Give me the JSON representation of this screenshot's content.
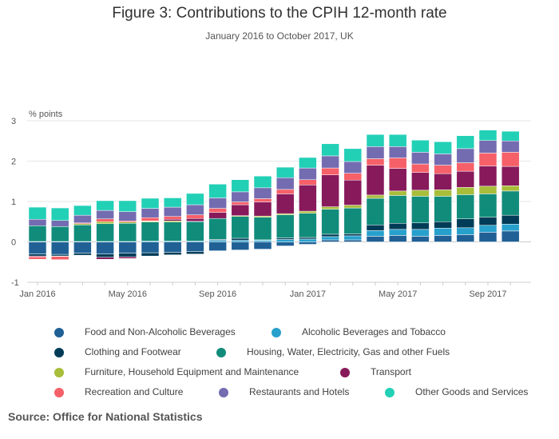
{
  "chart_data": {
    "type": "stacked bar",
    "title": "Figure 3: Contributions to the CPIH 12-month rate",
    "subtitle": "January 2016 to October 2017, UK",
    "ylabel": "% points",
    "ylim": [
      -1,
      3
    ],
    "yticks": [
      -1,
      0,
      1,
      2,
      3
    ],
    "x_tick_labels": [
      "Jan 2016",
      "May 2016",
      "Sep 2016",
      "Jan 2017",
      "May 2017",
      "Sep 2017"
    ],
    "x_tick_indices": [
      0,
      4,
      8,
      12,
      16,
      20
    ],
    "categories": [
      "Jan 2016",
      "Feb 2016",
      "Mar 2016",
      "Apr 2016",
      "May 2016",
      "Jun 2016",
      "Jul 2016",
      "Aug 2016",
      "Sep 2016",
      "Oct 2016",
      "Nov 2016",
      "Dec 2016",
      "Jan 2017",
      "Feb 2017",
      "Mar 2017",
      "Apr 2017",
      "May 2017",
      "Jun 2017",
      "Jul 2017",
      "Aug 2017",
      "Sep 2017",
      "Oct 2017"
    ],
    "series": [
      {
        "name": "Food and Non-Alcoholic Beverages",
        "color": "#206095",
        "values": [
          -0.3,
          -0.31,
          -0.28,
          -0.3,
          -0.28,
          -0.27,
          -0.26,
          -0.24,
          -0.22,
          -0.2,
          -0.18,
          -0.1,
          -0.06,
          0.05,
          0.05,
          0.14,
          0.16,
          0.14,
          0.16,
          0.18,
          0.24,
          0.27
        ]
      },
      {
        "name": "Alcoholic Beverages and Tobacco",
        "color": "#27a0cc",
        "values": [
          0.01,
          0.01,
          0.01,
          0.01,
          0.01,
          0.02,
          0.02,
          0.02,
          0.04,
          0.04,
          0.04,
          0.06,
          0.07,
          0.08,
          0.1,
          0.14,
          0.15,
          0.17,
          0.18,
          0.17,
          0.17,
          0.17
        ]
      },
      {
        "name": "Clothing and Footwear",
        "color": "#003c57",
        "values": [
          -0.05,
          -0.04,
          -0.05,
          -0.08,
          -0.09,
          -0.08,
          -0.06,
          -0.06,
          0.02,
          0.05,
          0.01,
          0.04,
          0.04,
          0.06,
          0.05,
          0.14,
          0.15,
          0.16,
          0.16,
          0.22,
          0.2,
          0.22
        ]
      },
      {
        "name": "Housing, Water, Electricity, Gas and other Fuels",
        "color": "#118c7b",
        "values": [
          0.39,
          0.37,
          0.41,
          0.44,
          0.45,
          0.47,
          0.47,
          0.48,
          0.52,
          0.54,
          0.56,
          0.57,
          0.6,
          0.62,
          0.64,
          0.66,
          0.69,
          0.66,
          0.63,
          0.6,
          0.58,
          0.6
        ]
      },
      {
        "name": "Furniture, Household Equipment and Maintenance",
        "color": "#a8bd3a",
        "values": [
          0.0,
          0.0,
          0.03,
          0.05,
          0.03,
          0.02,
          0.03,
          0.01,
          0.0,
          0.02,
          0.03,
          0.03,
          0.05,
          0.06,
          0.07,
          0.08,
          0.11,
          0.15,
          0.16,
          0.18,
          0.19,
          0.13
        ]
      },
      {
        "name": "Transport",
        "color": "#871a5b",
        "values": [
          -0.02,
          -0.01,
          -0.01,
          -0.05,
          -0.04,
          0.01,
          0.04,
          0.07,
          0.15,
          0.27,
          0.35,
          0.49,
          0.65,
          0.79,
          0.62,
          0.74,
          0.56,
          0.44,
          0.4,
          0.4,
          0.5,
          0.48
        ]
      },
      {
        "name": "Recreation and Culture",
        "color": "#f66068",
        "values": [
          -0.06,
          -0.08,
          0.02,
          0.07,
          0.03,
          0.08,
          0.07,
          0.09,
          0.1,
          0.07,
          0.08,
          0.11,
          0.13,
          0.17,
          0.17,
          0.16,
          0.26,
          0.21,
          0.21,
          0.21,
          0.32,
          0.35
        ]
      },
      {
        "name": "Restaurants and Hotels",
        "color": "#746cb1",
        "values": [
          0.16,
          0.15,
          0.19,
          0.21,
          0.23,
          0.23,
          0.23,
          0.25,
          0.26,
          0.25,
          0.27,
          0.29,
          0.29,
          0.3,
          0.29,
          0.3,
          0.28,
          0.29,
          0.28,
          0.35,
          0.31,
          0.28
        ]
      },
      {
        "name": "Other Goods and Services",
        "color": "#22d0b6",
        "values": [
          0.3,
          0.31,
          0.24,
          0.24,
          0.27,
          0.25,
          0.23,
          0.28,
          0.34,
          0.3,
          0.29,
          0.26,
          0.26,
          0.3,
          0.32,
          0.3,
          0.3,
          0.3,
          0.3,
          0.32,
          0.26,
          0.24
        ]
      }
    ]
  },
  "legend_order": [
    0,
    1,
    2,
    3,
    4,
    5,
    6,
    7,
    8
  ],
  "source": "Source: Office for National Statistics"
}
